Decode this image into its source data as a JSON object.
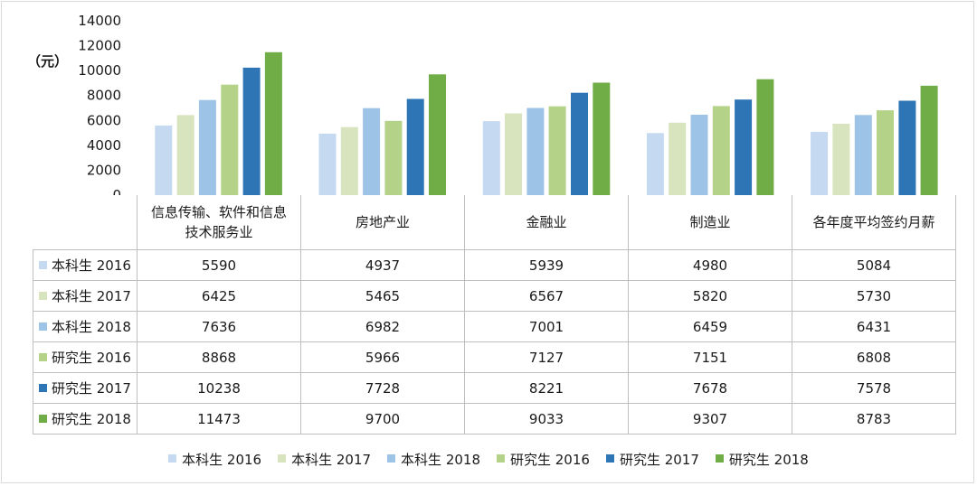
{
  "chart_data": {
    "type": "bar",
    "unit_label": "（元）",
    "ylim": [
      0,
      14000
    ],
    "y_ticks": [
      "0",
      "2000",
      "4000",
      "6000",
      "8000",
      "10000",
      "12000",
      "14000"
    ],
    "categories": [
      "信息传输、软件和信息技术服务业",
      "房地产业",
      "金融业",
      "制造业",
      "各年度平均签约月薪"
    ],
    "series": [
      {
        "name": "本科生 2016",
        "color": "#c5d9f1",
        "values": [
          5590,
          4937,
          5939,
          4980,
          5084
        ]
      },
      {
        "name": "本科生 2017",
        "color": "#d7e4bd",
        "values": [
          6425,
          5465,
          6567,
          5820,
          5730
        ]
      },
      {
        "name": "本科生 2018",
        "color": "#9dc3e6",
        "values": [
          7636,
          6982,
          7001,
          6459,
          6431
        ]
      },
      {
        "name": "研究生 2016",
        "color": "#b4d389",
        "values": [
          8868,
          5966,
          7127,
          7151,
          6808
        ]
      },
      {
        "name": "研究生 2017",
        "color": "#2e75b6",
        "values": [
          10238,
          7728,
          8221,
          7678,
          7578
        ]
      },
      {
        "name": "研究生 2018",
        "color": "#70ad47",
        "values": [
          11473,
          9700,
          9033,
          9307,
          8783
        ]
      }
    ],
    "legend_position": "bottom",
    "grid": false
  }
}
